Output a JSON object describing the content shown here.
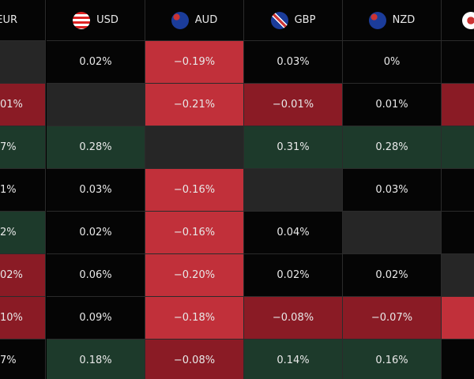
{
  "header": [
    "EUR",
    "USD",
    "AUD",
    "GBP",
    "NZD",
    ""
  ],
  "rows": [
    [
      "",
      "0.02%",
      "−0.19%",
      "0.03%",
      "0%",
      ""
    ],
    [
      "01%",
      "",
      "−0.21%",
      "−0.01%",
      "0.01%",
      ""
    ],
    [
      "7%",
      "0.28%",
      "",
      "0.31%",
      "0.28%",
      ""
    ],
    [
      "1%",
      "0.03%",
      "−0.16%",
      "",
      "0.03%",
      ""
    ],
    [
      "2%",
      "0.02%",
      "−0.16%",
      "0.04%",
      "",
      ""
    ],
    [
      "02%",
      "0.06%",
      "−0.20%",
      "0.02%",
      "0.02%",
      ""
    ],
    [
      "10%",
      "0.09%",
      "−0.18%",
      "−0.08%",
      "−0.07%",
      ""
    ],
    [
      "7%",
      "0.18%",
      "−0.08%",
      "0.14%",
      "0.16%",
      ""
    ]
  ]
}
